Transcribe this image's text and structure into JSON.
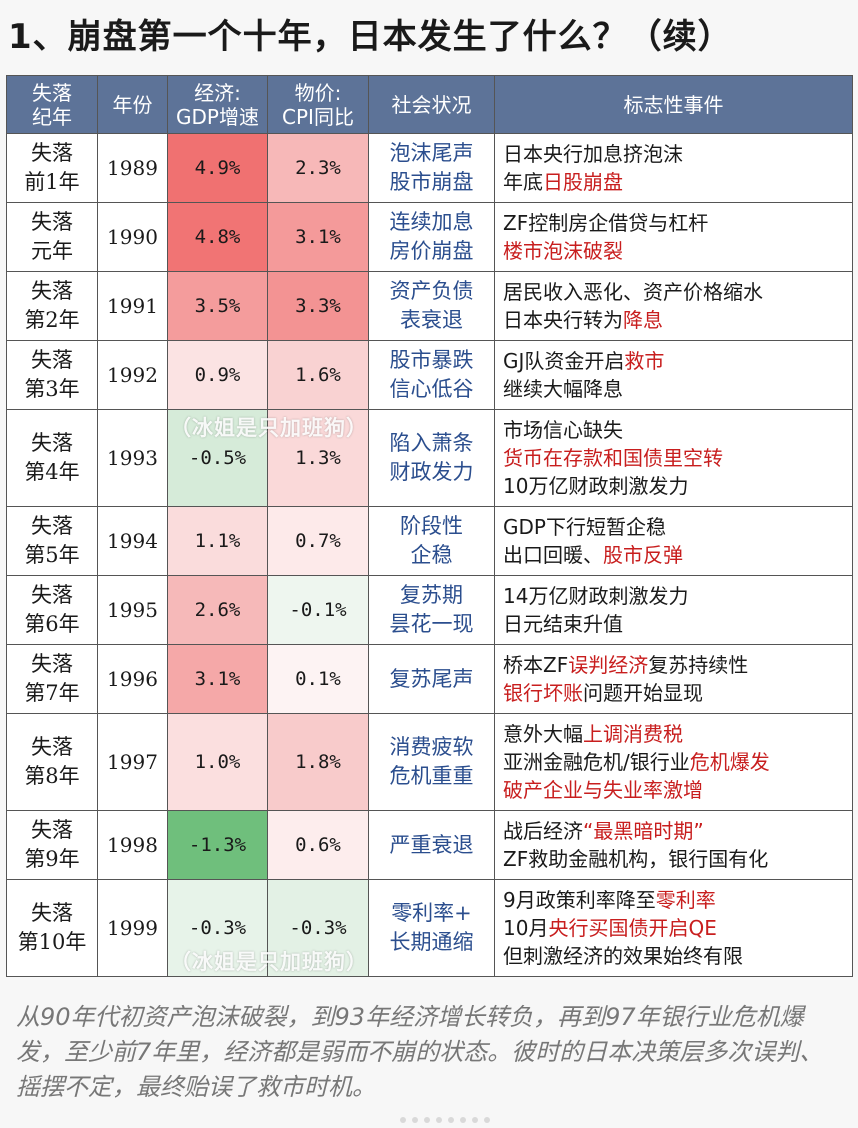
{
  "title": "1、崩盘第一个十年，日本发生了什么？（续）",
  "headers": [
    "失落\n纪年",
    "年份",
    "经济:\nGDP增速",
    "物价:\nCPI同比",
    "社会状况",
    "标志性事件"
  ],
  "colors": {
    "header_bg": "#5d7398",
    "red_text": "#c81e1e",
    "social_text": "#2b4e8e"
  },
  "rows": [
    {
      "era": "失落\n前1年",
      "year": "1989",
      "gdp": "4.9%",
      "gdp_bg": "#f07171",
      "cpi": "2.3%",
      "cpi_bg": "#f7b8b8",
      "social": "泡沫尾声\n股市崩盘",
      "events": [
        [
          {
            "t": "日本央行加息挤泡沫"
          }
        ],
        [
          {
            "t": "年底"
          },
          {
            "t": "日股崩盘",
            "r": true
          }
        ]
      ]
    },
    {
      "era": "失落\n元年",
      "year": "1990",
      "gdp": "4.8%",
      "gdp_bg": "#f17474",
      "cpi": "3.1%",
      "cpi_bg": "#f49a9a",
      "social": "连续加息\n房价崩盘",
      "events": [
        [
          {
            "t": "ZF控制房企借贷与杠杆"
          }
        ],
        [
          {
            "t": "楼市泡沫破裂",
            "r": true
          }
        ]
      ]
    },
    {
      "era": "失落\n第2年",
      "year": "1991",
      "gdp": "3.5%",
      "gdp_bg": "#f49c9c",
      "cpi": "3.3%",
      "cpi_bg": "#f39393",
      "social": "资产负债\n表衰退",
      "events": [
        [
          {
            "t": "居民收入恶化、资产价格缩水"
          }
        ],
        [
          {
            "t": "日本央行转为"
          },
          {
            "t": "降息",
            "r": true
          }
        ]
      ]
    },
    {
      "era": "失落\n第3年",
      "year": "1992",
      "gdp": "0.9%",
      "gdp_bg": "#fbe3e3",
      "cpi": "1.6%",
      "cpi_bg": "#f9d2d2",
      "social": "股市暴跌\n信心低谷",
      "events": [
        [
          {
            "t": "GJ队资金开启"
          },
          {
            "t": "救市",
            "r": true
          }
        ],
        [
          {
            "t": "继续大幅降息"
          }
        ]
      ]
    },
    {
      "era": "失落\n第4年",
      "year": "1993",
      "gdp": "-0.5%",
      "gdp_bg": "#d6ebd9",
      "cpi": "1.3%",
      "cpi_bg": "#fad9d9",
      "social": "陷入萧条\n财政发力",
      "events": [
        [
          {
            "t": "市场信心缺失"
          }
        ],
        [
          {
            "t": "货币在存款和国债里空转",
            "r": true
          }
        ],
        [
          {
            "t": "10万亿财政刺激发力"
          }
        ]
      ]
    },
    {
      "era": "失落\n第5年",
      "year": "1994",
      "gdp": "1.1%",
      "gdp_bg": "#fadcdc",
      "cpi": "0.7%",
      "cpi_bg": "#fdeaea",
      "social": "阶段性\n企稳",
      "events": [
        [
          {
            "t": "GDP下行短暂企稳"
          }
        ],
        [
          {
            "t": "出口回暖、"
          },
          {
            "t": "股市反弹",
            "r": true
          }
        ]
      ]
    },
    {
      "era": "失落\n第6年",
      "year": "1995",
      "gdp": "2.6%",
      "gdp_bg": "#f6b9b9",
      "cpi": "-0.1%",
      "cpi_bg": "#eef6ef",
      "social": "复苏期\n昙花一现",
      "events": [
        [
          {
            "t": "14万亿财政刺激发力"
          }
        ],
        [
          {
            "t": "日元结束升值"
          }
        ]
      ]
    },
    {
      "era": "失落\n第7年",
      "year": "1996",
      "gdp": "3.1%",
      "gdp_bg": "#f5a8a8",
      "cpi": "0.1%",
      "cpi_bg": "#fdf3f3",
      "social": "复苏尾声",
      "events": [
        [
          {
            "t": "桥本ZF"
          },
          {
            "t": "误判经济",
            "r": true
          },
          {
            "t": "复苏持续性"
          }
        ],
        [
          {
            "t": "银行坏账",
            "r": true
          },
          {
            "t": "问题开始显现"
          }
        ]
      ]
    },
    {
      "era": "失落\n第8年",
      "year": "1997",
      "gdp": "1.0%",
      "gdp_bg": "#fbdfdf",
      "cpi": "1.8%",
      "cpi_bg": "#f8cbcb",
      "social": "消费疲软\n危机重重",
      "events": [
        [
          {
            "t": "意外大幅"
          },
          {
            "t": "上调消费税",
            "r": true
          }
        ],
        [
          {
            "t": "亚洲金融危机/银行业"
          },
          {
            "t": "危机爆发",
            "r": true
          }
        ],
        [
          {
            "t": "破产企业与失业率激增",
            "r": true
          }
        ]
      ]
    },
    {
      "era": "失落\n第9年",
      "year": "1998",
      "gdp": "-1.3%",
      "gdp_bg": "#6fbf7c",
      "cpi": "0.6%",
      "cpi_bg": "#fdeded",
      "social": "严重衰退",
      "events": [
        [
          {
            "t": "战后经济"
          },
          {
            "t": "“最黑暗时期”",
            "r": true
          }
        ],
        [
          {
            "t": "ZF救助金融机构，银行国有化"
          }
        ]
      ]
    },
    {
      "era": "失落\n第10年",
      "year": "1999",
      "gdp": "-0.3%",
      "gdp_bg": "#e7f3e9",
      "cpi": "-0.3%",
      "cpi_bg": "#e3f1e5",
      "social": "零利率+\n长期通缩",
      "events": [
        [
          {
            "t": "9月政策利率降至"
          },
          {
            "t": "零利率",
            "r": true
          }
        ],
        [
          {
            "t": "10月"
          },
          {
            "t": "央行买国债开启QE",
            "r": true
          }
        ],
        [
          {
            "t": "但刺激经济的效果始终有限"
          }
        ]
      ]
    }
  ],
  "footer": "从90年代初资产泡沫破裂，到93年经济增长转负，再到97年银行业危机爆发，至少前7年里，经济都是弱而不崩的状态。彼时的日本决策层多次误判、摇摆不定，最终贻误了救市时机。",
  "watermark": "（冰姐是只加班狗）"
}
